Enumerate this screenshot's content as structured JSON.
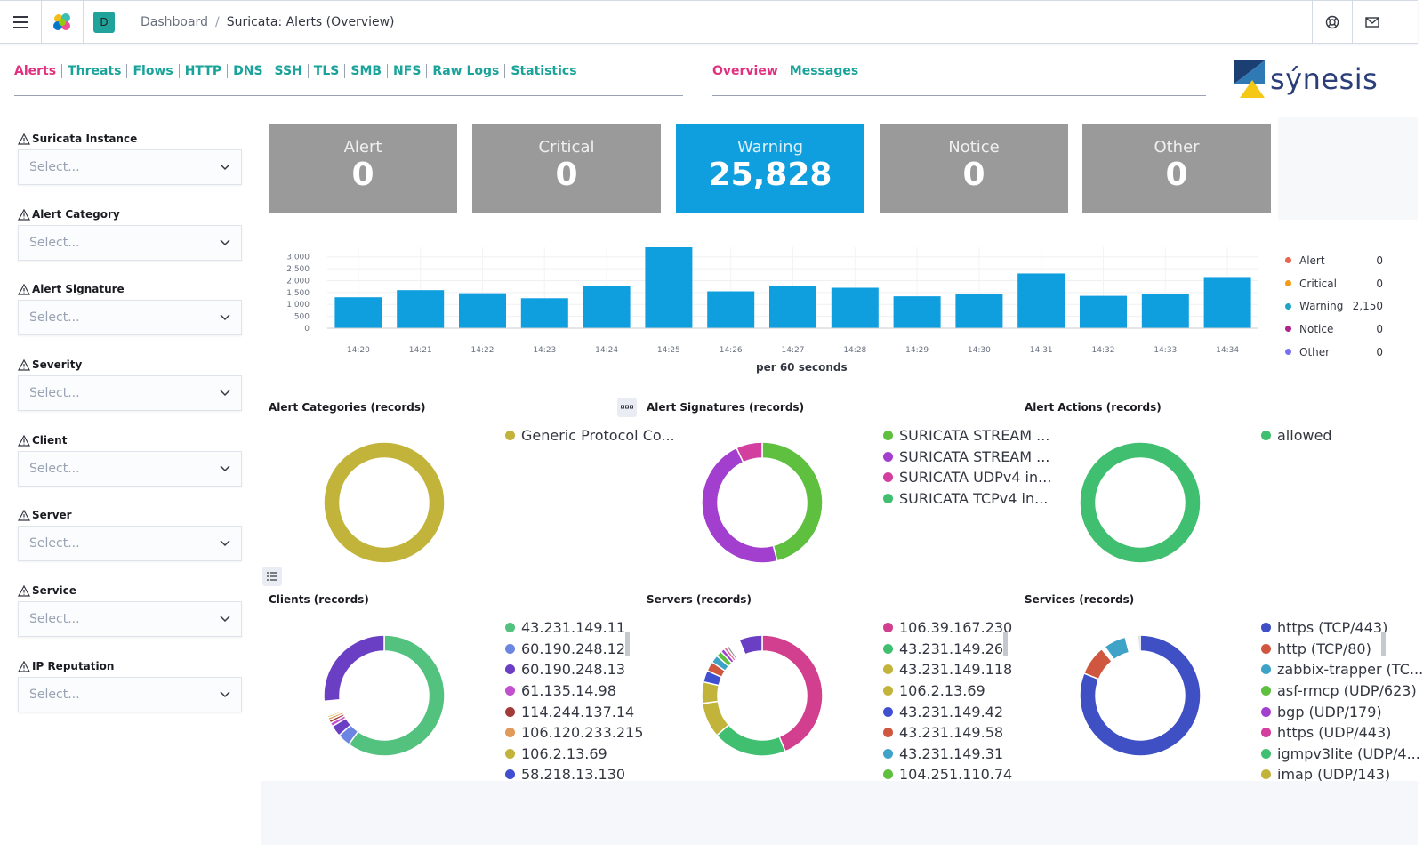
{
  "header": {
    "breadcrumb_root": "Dashboard",
    "breadcrumb_separator": "/",
    "breadcrumb_current": "Suricata: Alerts (Overview)",
    "space_initial": "D"
  },
  "nav_left": [
    {
      "label": "Alerts",
      "active": true
    },
    {
      "label": "Threats"
    },
    {
      "label": "Flows"
    },
    {
      "label": "HTTP"
    },
    {
      "label": "DNS"
    },
    {
      "label": "SSH"
    },
    {
      "label": "TLS"
    },
    {
      "label": "SMB"
    },
    {
      "label": "NFS"
    },
    {
      "label": "Raw Logs"
    },
    {
      "label": "Statistics"
    }
  ],
  "nav_right": [
    {
      "label": "Overview",
      "active": true
    },
    {
      "label": "Messages"
    }
  ],
  "brand": {
    "text": "sýnesis"
  },
  "filters": [
    {
      "label": "Suricata Instance",
      "placeholder": "Select..."
    },
    {
      "label": "Alert Category",
      "placeholder": "Select..."
    },
    {
      "label": "Alert Signature",
      "placeholder": "Select..."
    },
    {
      "label": "Severity",
      "placeholder": "Select..."
    },
    {
      "label": "Client",
      "placeholder": "Select..."
    },
    {
      "label": "Server",
      "placeholder": "Select..."
    },
    {
      "label": "Service",
      "placeholder": "Select..."
    },
    {
      "label": "IP Reputation",
      "placeholder": "Select..."
    }
  ],
  "metrics": [
    {
      "label": "Alert",
      "value": "0"
    },
    {
      "label": "Critical",
      "value": "0"
    },
    {
      "label": "Warning",
      "value": "25,828"
    },
    {
      "label": "Notice",
      "value": "0"
    },
    {
      "label": "Other",
      "value": "0"
    }
  ],
  "chart_data": {
    "type": "bar",
    "categories": [
      "14:20",
      "14:21",
      "14:22",
      "14:23",
      "14:24",
      "14:25",
      "14:26",
      "14:27",
      "14:28",
      "14:29",
      "14:30",
      "14:31",
      "14:32",
      "14:33",
      "14:34"
    ],
    "series": [
      {
        "name": "Warning",
        "values": [
          1300,
          1600,
          1470,
          1260,
          1760,
          3400,
          1550,
          1770,
          1700,
          1340,
          1450,
          2300,
          1360,
          1430,
          2150
        ]
      }
    ],
    "xlabel": "per 60 seconds",
    "yticks": [
      "0",
      "500",
      "1,000",
      "1,500",
      "2,000",
      "2,500",
      "3,000"
    ],
    "ylim": [
      0,
      3400
    ],
    "grid": true,
    "legend_position": "right",
    "legend": [
      {
        "name": "Alert",
        "value": "0",
        "color": "#e7664c"
      },
      {
        "name": "Critical",
        "value": "0",
        "color": "#f39c12"
      },
      {
        "name": "Warning",
        "value": "2,150",
        "color": "#1ea3c7"
      },
      {
        "name": "Notice",
        "value": "0",
        "color": "#b0228c"
      },
      {
        "name": "Other",
        "value": "0",
        "color": "#7a6ff0"
      }
    ],
    "bar_color": "#0f9fdf"
  },
  "panels": {
    "alert_categories": {
      "title": "Alert Categories (records)",
      "legend": [
        {
          "label": "Generic Protocol Co...",
          "color": "#c2b43a"
        }
      ],
      "slices": [
        {
          "value": 100,
          "color": "#c2b43a"
        }
      ]
    },
    "alert_signatures": {
      "title": "Alert Signatures (records)",
      "legend": [
        {
          "label": "SURICATA STREAM ...",
          "color": "#5fbf3f"
        },
        {
          "label": "SURICATA STREAM ...",
          "color": "#a23fcf"
        },
        {
          "label": "SURICATA UDPv4 in...",
          "color": "#d23f9f"
        },
        {
          "label": "SURICATA TCPv4 in...",
          "color": "#3fbf6f"
        }
      ],
      "slices": [
        {
          "value": 46,
          "color": "#5fbf3f"
        },
        {
          "value": 47,
          "color": "#a23fcf"
        },
        {
          "value": 7,
          "color": "#d23f9f"
        }
      ]
    },
    "alert_actions": {
      "title": "Alert Actions (records)",
      "legend": [
        {
          "label": "allowed",
          "color": "#3fbf6f"
        }
      ],
      "slices": [
        {
          "value": 100,
          "color": "#3fbf6f"
        }
      ]
    },
    "clients": {
      "title": "Clients (records)",
      "legend": [
        {
          "label": "43.231.149.11",
          "color": "#54c27f"
        },
        {
          "label": "60.190.248.12",
          "color": "#6b85e0"
        },
        {
          "label": "60.190.248.13",
          "color": "#6a3fc4"
        },
        {
          "label": "61.135.14.98",
          "color": "#c24fcf"
        },
        {
          "label": "114.244.137.14",
          "color": "#a33a3a"
        },
        {
          "label": "106.120.233.215",
          "color": "#e09a5a"
        },
        {
          "label": "106.2.13.69",
          "color": "#c2b43a"
        },
        {
          "label": "58.218.13.130",
          "color": "#3f4fd0"
        }
      ],
      "slices": [
        {
          "value": 60,
          "color": "#54c27f"
        },
        {
          "value": 3.5,
          "color": "#6b85e0"
        },
        {
          "value": 3,
          "color": "#6a3fc4"
        },
        {
          "value": 1,
          "color": "#c24fcf"
        },
        {
          "value": 0.8,
          "color": "#a33a3a"
        },
        {
          "value": 0.7,
          "color": "#e09a5a"
        },
        {
          "value": 0.5,
          "color": "#c2b43a"
        },
        {
          "value": 0,
          "color": "#ffffff",
          "gap": true,
          "gap_value": 4
        },
        {
          "value": 26.5,
          "color": "#6a3fc4"
        }
      ]
    },
    "servers": {
      "title": "Servers (records)",
      "legend": [
        {
          "label": "106.39.167.230",
          "color": "#d23f8f"
        },
        {
          "label": "43.231.149.26",
          "color": "#3fbf6f"
        },
        {
          "label": "43.231.149.118",
          "color": "#c2b43a"
        },
        {
          "label": "106.2.13.69",
          "color": "#c2b43a"
        },
        {
          "label": "43.231.149.42",
          "color": "#3f4fd0"
        },
        {
          "label": "43.231.149.58",
          "color": "#cf573f"
        },
        {
          "label": "43.231.149.31",
          "color": "#3fa3c7"
        },
        {
          "label": "104.251.110.74",
          "color": "#5fbf3f"
        }
      ],
      "slices": [
        {
          "value": 42,
          "color": "#d23f8f"
        },
        {
          "value": 19,
          "color": "#3fbf6f"
        },
        {
          "value": 9,
          "color": "#c2b43a"
        },
        {
          "value": 5.5,
          "color": "#c2b43a"
        },
        {
          "value": 3,
          "color": "#3f4fd0"
        },
        {
          "value": 2.5,
          "color": "#cf573f"
        },
        {
          "value": 2,
          "color": "#3fa3c7"
        },
        {
          "value": 1.5,
          "color": "#5fbf3f"
        },
        {
          "value": 1,
          "color": "#a23fcf"
        },
        {
          "value": 0.8,
          "color": "#e06f9f"
        },
        {
          "value": 0.7,
          "color": "#9a9a9a"
        },
        {
          "value": 3,
          "color": "#ffffff"
        },
        {
          "value": 6,
          "color": "#6a3fc4"
        }
      ]
    },
    "services": {
      "title": "Services (records)",
      "legend": [
        {
          "label": "https (TCP/443)",
          "color": "#3f4fc4"
        },
        {
          "label": "http (TCP/80)",
          "color": "#cf573f"
        },
        {
          "label": "zabbix-trapper (TC...",
          "color": "#3fa3c7"
        },
        {
          "label": "asf-rmcp (UDP/623)",
          "color": "#5fbf3f"
        },
        {
          "label": "bgp (UDP/179)",
          "color": "#a23fcf"
        },
        {
          "label": "https (UDP/443)",
          "color": "#d23f9f"
        },
        {
          "label": "igmpv3lite (UDP/4...",
          "color": "#3fbf6f"
        },
        {
          "label": "imap (UDP/143)",
          "color": "#c2b43a"
        }
      ],
      "slices": [
        {
          "value": 81,
          "color": "#3f4fc4"
        },
        {
          "value": 8,
          "color": "#cf573f"
        },
        {
          "value": 1,
          "color": "#ffffff"
        },
        {
          "value": 6,
          "color": "#3fa3c7"
        },
        {
          "value": 3.5,
          "color": "#ffffff"
        },
        {
          "value": 0.5,
          "color": "#9a9a9a"
        }
      ]
    }
  }
}
